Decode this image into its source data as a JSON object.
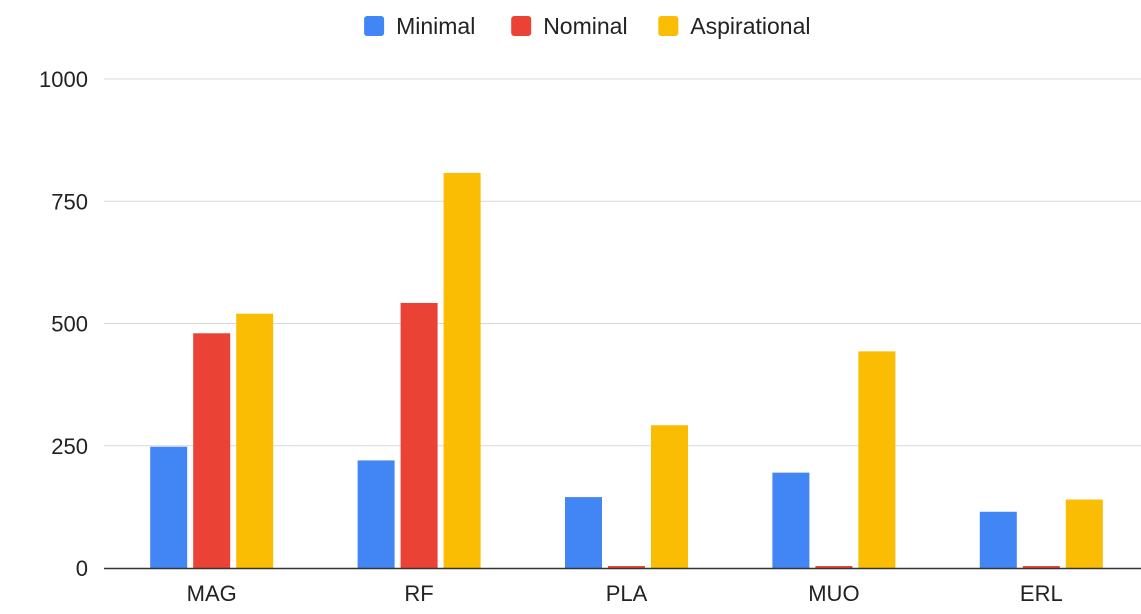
{
  "chart_data": {
    "type": "bar",
    "categories": [
      "MAG",
      "RF",
      "PLA",
      "MUO",
      "ERL"
    ],
    "series": [
      {
        "name": "Minimal",
        "color": "#4285f4",
        "values": [
          248,
          220,
          145,
          195,
          115
        ]
      },
      {
        "name": "Nominal",
        "color": "#ea4335",
        "values": [
          480,
          542,
          4,
          4,
          4
        ]
      },
      {
        "name": "Aspirational",
        "color": "#fbbc04",
        "values": [
          520,
          808,
          292,
          443,
          140
        ]
      }
    ],
    "y_ticks": [
      "0",
      "250",
      "500",
      "750",
      "1000"
    ],
    "ylim": [
      0,
      1000
    ],
    "grid": true,
    "legend_position": "top-center"
  }
}
